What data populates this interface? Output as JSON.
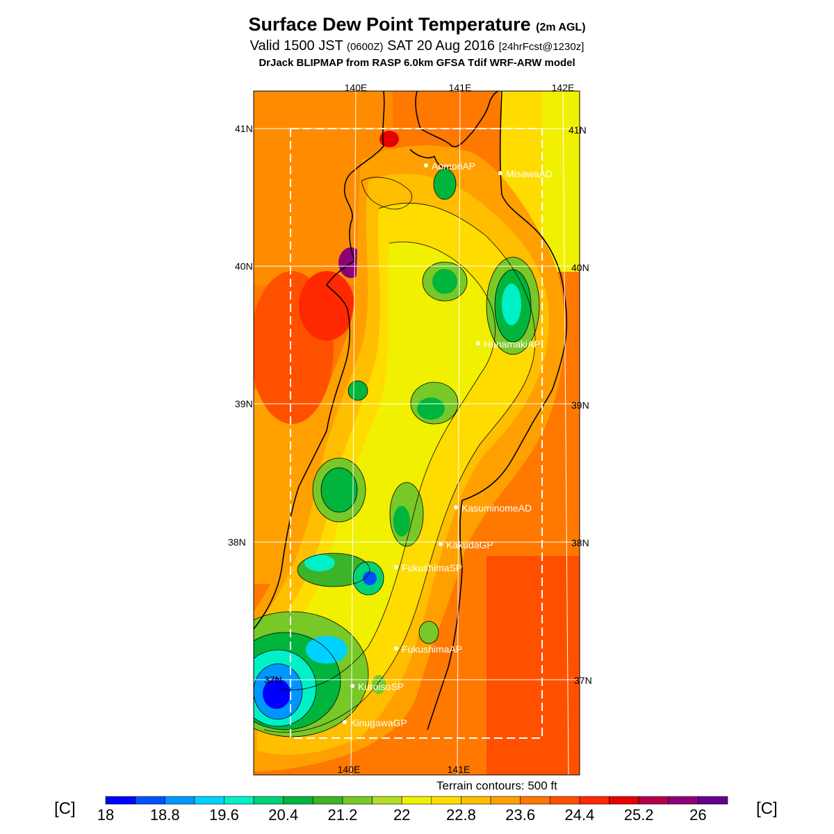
{
  "title": {
    "main": "Surface Dew Point Temperature",
    "main_suffix": "(2m AGL)",
    "valid_prefix": "Valid 1500 JST",
    "valid_utc": "(0600Z)",
    "valid_date": "SAT 20 Aug 2016",
    "forecast": "[24hrFcst@1230z]",
    "model": "DrJack BLIPMAP from RASP 6.0km GFSA Tdif WRF-ARW model"
  },
  "lon_labels_top": [
    "140E",
    "141E",
    "142E"
  ],
  "lon_labels_bottom": [
    "140E",
    "141E"
  ],
  "lat_labels": [
    "41N",
    "40N",
    "39N",
    "38N",
    "37N"
  ],
  "stations": [
    {
      "name": "AomoriAP"
    },
    {
      "name": "MisawaAD"
    },
    {
      "name": "HanamakiAP"
    },
    {
      "name": "KasuminomeAD"
    },
    {
      "name": "KakudaGP"
    },
    {
      "name": "FukushimaSP"
    },
    {
      "name": "FukushimaAP"
    },
    {
      "name": "KuroisoSP"
    },
    {
      "name": "KinugawaGP"
    }
  ],
  "terrain_note": "Terrain contours: 500 ft",
  "colorbar": {
    "unit": "[C]",
    "ticks": [
      "18",
      "18.8",
      "19.6",
      "20.4",
      "21.2",
      "22",
      "22.8",
      "23.6",
      "24.4",
      "25.2",
      "26"
    ],
    "colors": [
      "#0000ff",
      "#0050ff",
      "#0096ff",
      "#00d2ff",
      "#00f0c8",
      "#00d278",
      "#00b43c",
      "#3cb428",
      "#78c828",
      "#b4dc28",
      "#f0f000",
      "#ffdc00",
      "#ffbe00",
      "#ffa000",
      "#ff7800",
      "#ff5000",
      "#ff2800",
      "#e60000",
      "#b4004b",
      "#8c0078",
      "#64008c"
    ]
  }
}
